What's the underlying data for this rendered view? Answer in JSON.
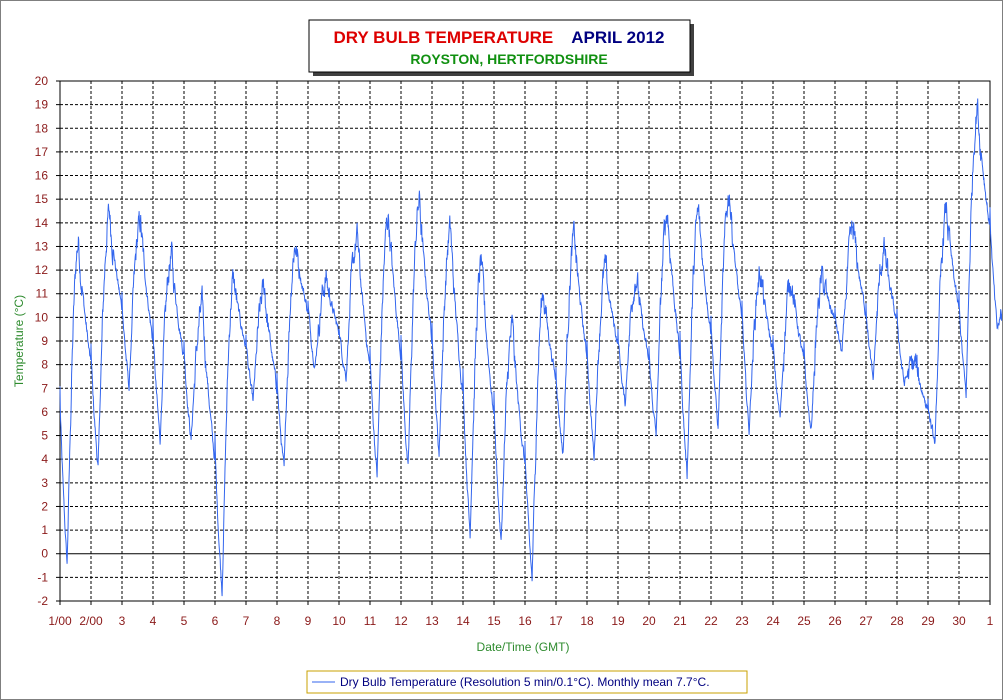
{
  "chart_data": {
    "type": "line",
    "title_parameter": "DRY BULB TEMPERATURE",
    "title_period": "APRIL 2012",
    "subtitle": "ROYSTON, HERTFORDSHIRE",
    "xlabel": "Date/Time (GMT)",
    "ylabel": "Temperature (°C)",
    "ylim": [
      -2,
      20
    ],
    "xlim_days": [
      1,
      31
    ],
    "y_ticks": [
      "-2",
      "-1",
      "0",
      "1",
      "2",
      "3",
      "4",
      "5",
      "6",
      "7",
      "8",
      "9",
      "10",
      "11",
      "12",
      "13",
      "14",
      "15",
      "16",
      "17",
      "18",
      "19",
      "20"
    ],
    "x_ticks": [
      "1/00",
      "2/00",
      "3",
      "4",
      "5",
      "6",
      "7",
      "8",
      "9",
      "10",
      "11",
      "12",
      "13",
      "14",
      "15",
      "16",
      "17",
      "18",
      "19",
      "20",
      "21",
      "22",
      "23",
      "24",
      "25",
      "26",
      "27",
      "28",
      "29",
      "30",
      "1"
    ],
    "grid": true,
    "legend_position": "bottom",
    "series": [
      {
        "name": "Dry Bulb Temperature (Resolution 5 min/0.1°C). Monthly mean 7.7°C.",
        "color": "#3366ee",
        "daily_min": [
          -0.5,
          3.6,
          7.0,
          4.8,
          4.8,
          -1.6,
          6.4,
          3.5,
          7.9,
          7.5,
          3.3,
          3.5,
          4.2,
          0.8,
          0.4,
          -1.1,
          4.2,
          4.1,
          6.3,
          5.0,
          3.3,
          5.3,
          5.2,
          5.7,
          5.1,
          8.5,
          7.3,
          7.2,
          4.6,
          6.7,
          9.5
        ],
        "daily_max": [
          13.2,
          14.4,
          14.0,
          12.6,
          10.4,
          11.6,
          11.2,
          13.1,
          11.6,
          13.3,
          14.3,
          14.9,
          13.7,
          12.3,
          9.5,
          11.1,
          13.4,
          12.0,
          11.8,
          14.5,
          14.4,
          15.3,
          11.9,
          11.7,
          11.6,
          13.6,
          12.8,
          8.0,
          14.5,
          18.9,
          10.5
        ]
      }
    ]
  }
}
